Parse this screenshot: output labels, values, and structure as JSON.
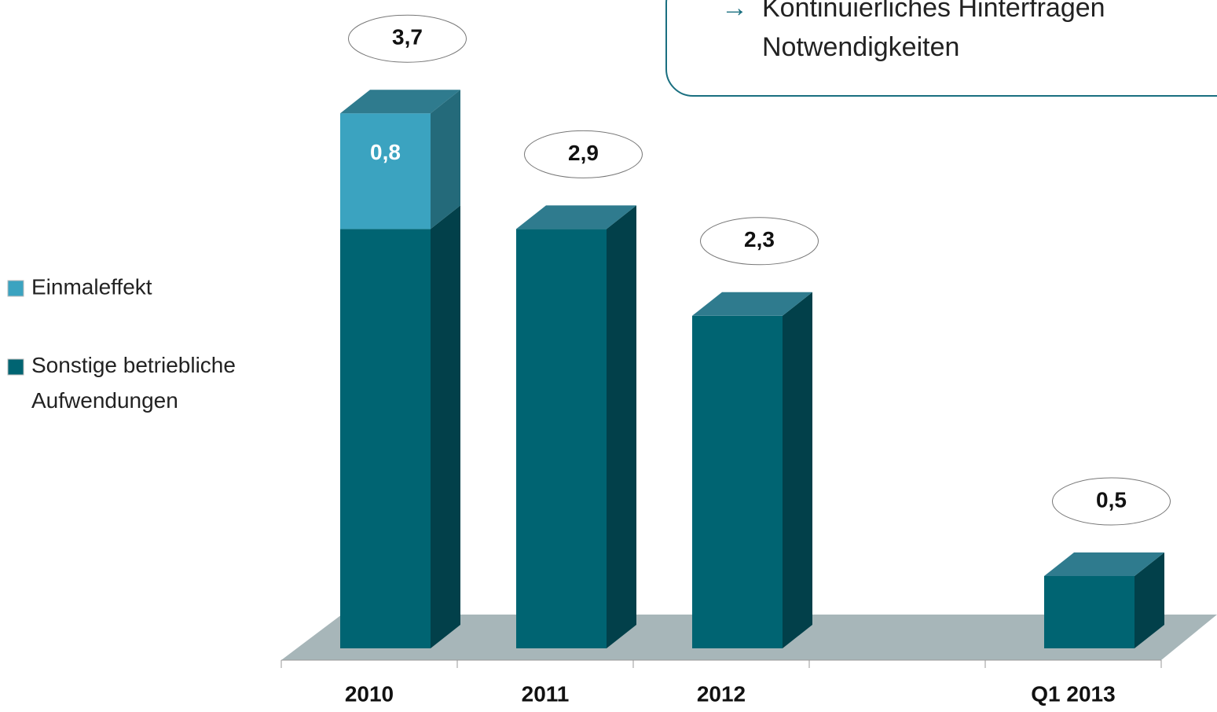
{
  "chart_data": {
    "type": "bar3d_stacked",
    "categories": [
      "2010",
      "2011",
      "2012",
      null,
      "Q1 2013"
    ],
    "series": [
      {
        "name": "Sonstige betriebliche Aufwendungen",
        "color": "#006472",
        "side_color": "#02404a",
        "top_color": "#2f7b8e",
        "values": [
          2.9,
          2.9,
          2.3,
          null,
          0.5
        ]
      },
      {
        "name": "Einmaleffekt",
        "color": "#3ba3c0",
        "side_color": "#246a7a",
        "top_color": "#2f7b8e",
        "values": [
          0.8,
          null,
          null,
          null,
          null
        ],
        "value_labels": [
          "0,8",
          null,
          null,
          null,
          null
        ]
      }
    ],
    "totals": {
      "values": [
        3.7,
        2.9,
        2.3,
        null,
        0.5
      ],
      "value_labels": [
        "3,7",
        "2,9",
        "2,3",
        null,
        "0,5"
      ]
    },
    "ylim": [
      0,
      4
    ],
    "legend": "left",
    "annotation": {
      "arrow": "→",
      "lines": [
        "Kontinuierliches Hinterfragen",
        "Notwendigkeiten"
      ]
    }
  }
}
